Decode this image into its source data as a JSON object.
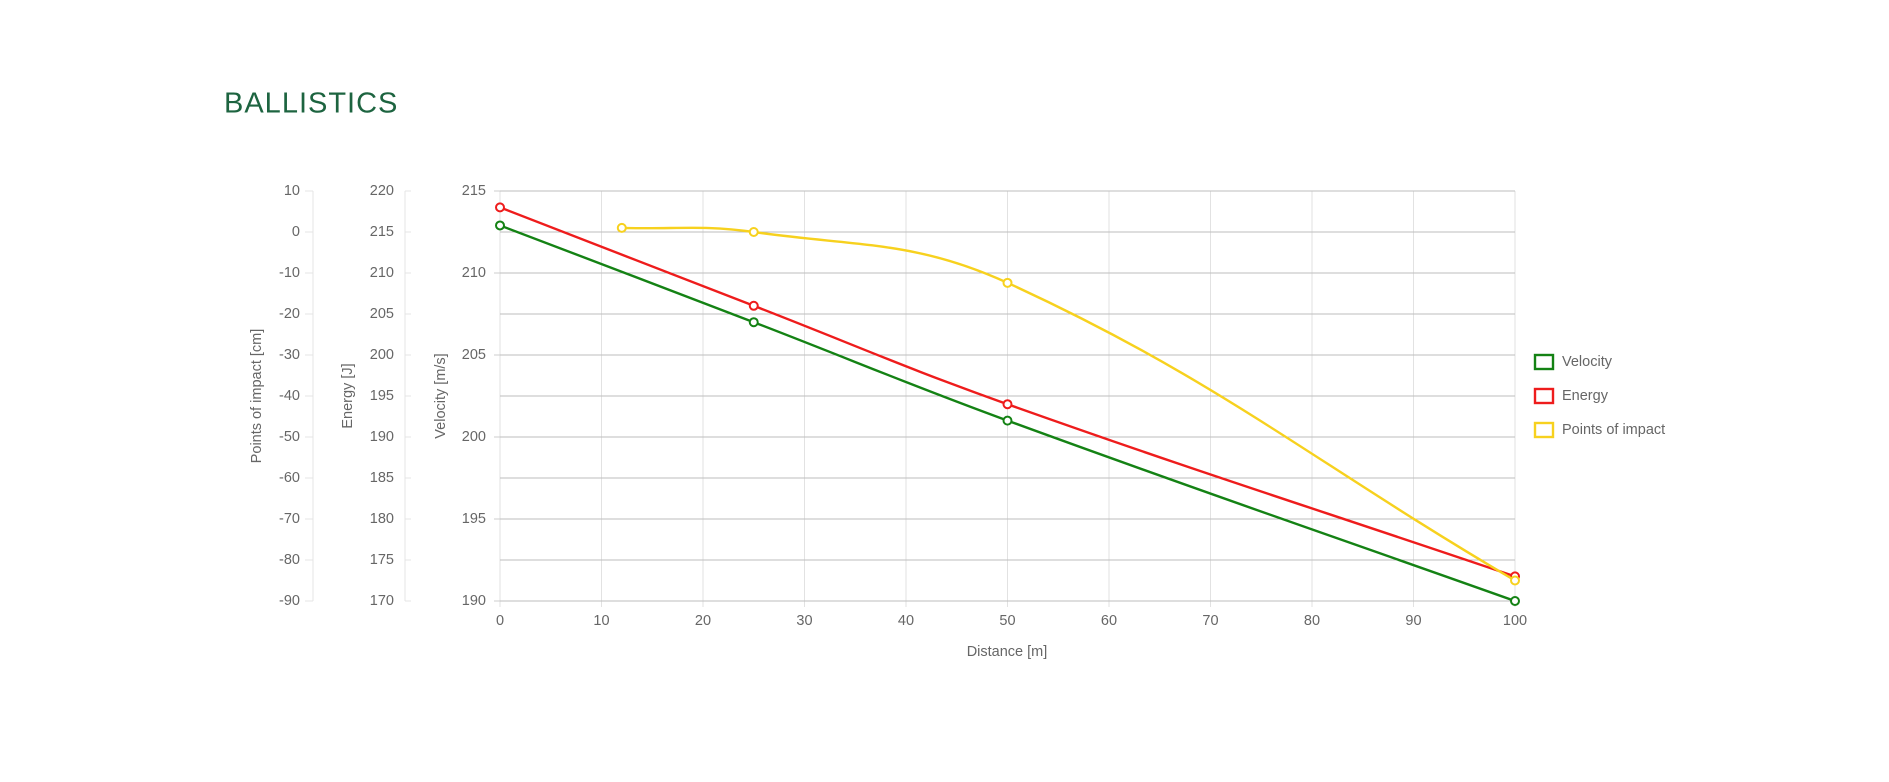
{
  "chart_data": {
    "type": "line",
    "title": "BALLISTICS",
    "x_label": "Distance [m]",
    "y_label": "Velocity [m/s]",
    "y2_label": "Energy [J]",
    "y3_label": "Points of impact [cm]",
    "xlim": [
      0,
      100
    ],
    "xticks": [
      0,
      10,
      20,
      30,
      40,
      50,
      60,
      70,
      80,
      90,
      100
    ],
    "ylim": [
      190,
      215
    ],
    "yticks": [
      190,
      195,
      200,
      205,
      210,
      215
    ],
    "y2lim": [
      170,
      220
    ],
    "y2ticks": [
      170,
      175,
      180,
      185,
      190,
      195,
      200,
      205,
      210,
      215,
      220
    ],
    "y3lim": [
      -90,
      10
    ],
    "y3ticks": [
      -90,
      -80,
      -70,
      -60,
      -50,
      -40,
      -30,
      -20,
      -10,
      0,
      10
    ],
    "grid": true,
    "legend": "right",
    "series": [
      {
        "name": "Velocity",
        "color": "#148214",
        "axis": "y",
        "x": [
          0,
          25,
          50,
          100
        ],
        "values": [
          212.9,
          207,
          201,
          190
        ]
      },
      {
        "name": "Energy",
        "color": "#ee1c1c",
        "axis": "y2",
        "x": [
          0,
          25,
          50,
          100
        ],
        "values": [
          218,
          206,
          194,
          173
        ]
      },
      {
        "name": "Points of impact",
        "color": "#f7d11e",
        "axis": "y3",
        "x": [
          12,
          25,
          50,
          100
        ],
        "values": [
          1,
          0,
          -12.4,
          -85
        ]
      }
    ]
  }
}
